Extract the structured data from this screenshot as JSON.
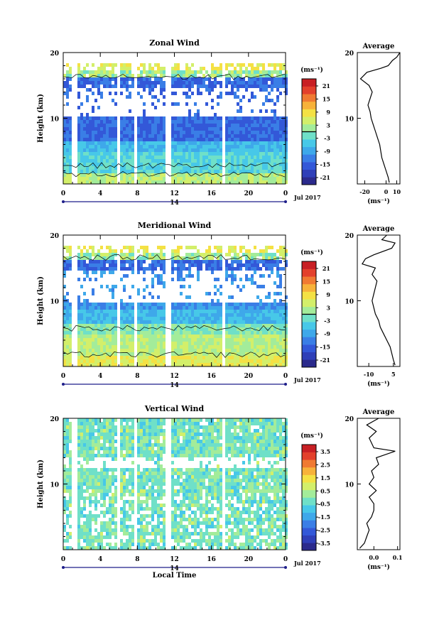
{
  "xaxis": {
    "tick_labels": [
      "0",
      "4",
      "8",
      "12",
      "16",
      "20",
      "0"
    ],
    "day_label": "14",
    "month_label": "Jul 2017",
    "label": "Local Time"
  },
  "yaxis": {
    "label": "Height (km)",
    "tick_labels": [
      "10",
      "20"
    ]
  },
  "colorbar_unit": "(ms⁻¹)",
  "avg_title": "Average",
  "avg_unit": "(ms⁻¹)",
  "colors": [
    "#2b2a8c",
    "#2f3fb8",
    "#3358d8",
    "#3a7ee6",
    "#3ea8ea",
    "#47c8e8",
    "#6fe0c8",
    "#a3ec9a",
    "#d3ef6a",
    "#f4e144",
    "#f7b23a",
    "#f07a32",
    "#e3402c",
    "#c81f24"
  ],
  "chart_data": [
    {
      "type": "heatmap",
      "title": "Zonal Wind",
      "colorbar_ticks": [
        "21",
        "15",
        "9",
        "3",
        "-3",
        "-9",
        "-15",
        "-21"
      ],
      "range": [
        -24,
        24
      ],
      "avg": {
        "type": "line",
        "title": "Average",
        "x_ticks": [
          "-20",
          "0",
          "10"
        ],
        "xlim": [
          -27,
          13
        ],
        "ylim": [
          0,
          20
        ],
        "points": [
          [
            3,
            0.2
          ],
          [
            2,
            1
          ],
          [
            0,
            2
          ],
          [
            -2,
            3
          ],
          [
            -4,
            4
          ],
          [
            -5,
            5
          ],
          [
            -6,
            6
          ],
          [
            -8,
            7
          ],
          [
            -10,
            8
          ],
          [
            -12,
            9
          ],
          [
            -14,
            10
          ],
          [
            -15,
            11
          ],
          [
            -17,
            12
          ],
          [
            -15,
            13
          ],
          [
            -13,
            14
          ],
          [
            -16,
            15
          ],
          [
            -24,
            16
          ],
          [
            -18,
            17
          ],
          [
            -5,
            17.6
          ],
          [
            2,
            18
          ],
          [
            6,
            18.8
          ],
          [
            10,
            19.3
          ],
          [
            13,
            20
          ]
        ]
      }
    },
    {
      "type": "heatmap",
      "title": "Meridional Wind",
      "colorbar_ticks": [
        "21",
        "15",
        "9",
        "3",
        "-3",
        "-9",
        "-15",
        "-21"
      ],
      "range": [
        -24,
        24
      ],
      "avg": {
        "type": "line",
        "title": "Average",
        "x_ticks": [
          "-10",
          "5"
        ],
        "xlim": [
          -17,
          9
        ],
        "ylim": [
          0,
          20
        ],
        "points": [
          [
            6,
            0.2
          ],
          [
            5,
            1
          ],
          [
            4,
            2
          ],
          [
            3,
            3
          ],
          [
            1,
            4
          ],
          [
            -1,
            5
          ],
          [
            -3,
            6
          ],
          [
            -4,
            7
          ],
          [
            -6,
            8
          ],
          [
            -7,
            9
          ],
          [
            -8,
            10
          ],
          [
            -7,
            11
          ],
          [
            -6,
            12
          ],
          [
            -5,
            13
          ],
          [
            -8,
            14
          ],
          [
            -6,
            15
          ],
          [
            -14,
            15.6
          ],
          [
            -12,
            16.4
          ],
          [
            -7,
            17
          ],
          [
            4,
            18
          ],
          [
            6,
            18.8
          ],
          [
            -2,
            19.3
          ],
          [
            1,
            20
          ]
        ]
      }
    },
    {
      "type": "heatmap",
      "title": "Vertical Wind",
      "colorbar_ticks": [
        "3.5",
        "2.5",
        "1.5",
        "0.5",
        "-0.5",
        "-1.5",
        "-2.5",
        "-3.5"
      ],
      "range": [
        -4,
        4
      ],
      "xlabel": "Local Time",
      "avg": {
        "type": "line",
        "title": "Average",
        "x_ticks": [
          "0.0",
          "0.1"
        ],
        "xlim": [
          -0.07,
          0.11
        ],
        "ylim": [
          0,
          20
        ],
        "points": [
          [
            -0.06,
            0.2
          ],
          [
            -0.04,
            1
          ],
          [
            -0.03,
            2
          ],
          [
            -0.02,
            3
          ],
          [
            -0.03,
            4
          ],
          [
            -0.01,
            5
          ],
          [
            0.0,
            6
          ],
          [
            0.0,
            7
          ],
          [
            -0.02,
            8
          ],
          [
            0.01,
            9
          ],
          [
            -0.02,
            10
          ],
          [
            0.0,
            11
          ],
          [
            -0.01,
            12
          ],
          [
            0.02,
            13
          ],
          [
            0.01,
            14
          ],
          [
            0.05,
            14.5
          ],
          [
            0.09,
            15
          ],
          [
            0.0,
            15.5
          ],
          [
            -0.02,
            17
          ],
          [
            0.01,
            18
          ],
          [
            -0.03,
            19
          ],
          [
            0.02,
            20
          ]
        ]
      }
    }
  ]
}
